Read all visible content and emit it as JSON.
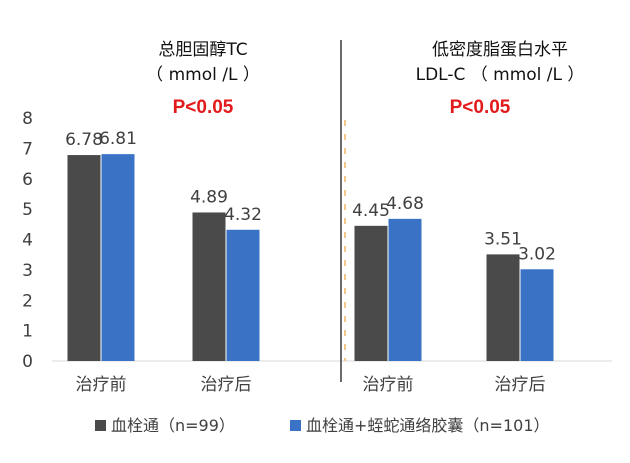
{
  "chart_data": {
    "type": "bar",
    "ylim": [
      0,
      8
    ],
    "yticks": [
      0,
      1,
      2,
      3,
      4,
      5,
      6,
      7,
      8
    ],
    "grid": false,
    "legend_position": "bottom",
    "series": [
      {
        "name": "血栓通（n=99）",
        "color": "#4a4a4a"
      },
      {
        "name": "血栓通+蛭蛇通络胶囊（n=101）",
        "color": "#3a73c6"
      }
    ],
    "panels": [
      {
        "title_line1": "总胆固醇TC",
        "title_line2": "（ mmol /L ）",
        "p_value": "P<0.05",
        "categories": [
          "治疗前",
          "治疗后"
        ],
        "values": [
          [
            6.78,
            4.89
          ],
          [
            6.81,
            4.32
          ]
        ],
        "labels": [
          [
            "6.78",
            "4.89"
          ],
          [
            "6.81",
            "4.32"
          ]
        ]
      },
      {
        "title_line1": "低密度脂蛋白水平",
        "title_line2": "LDL-C （ mmol /L ）",
        "p_value": "P<0.05",
        "categories": [
          "治疗前",
          "治疗后"
        ],
        "values": [
          [
            4.45,
            3.51
          ],
          [
            4.68,
            3.02
          ]
        ],
        "labels": [
          [
            "4.45",
            "3.51"
          ],
          [
            "4.68",
            "3.02"
          ]
        ]
      }
    ],
    "p_value_color": "#e31a1c",
    "divider_color": "#3a3a3a",
    "dashed_line_color": "#f2c98a"
  }
}
